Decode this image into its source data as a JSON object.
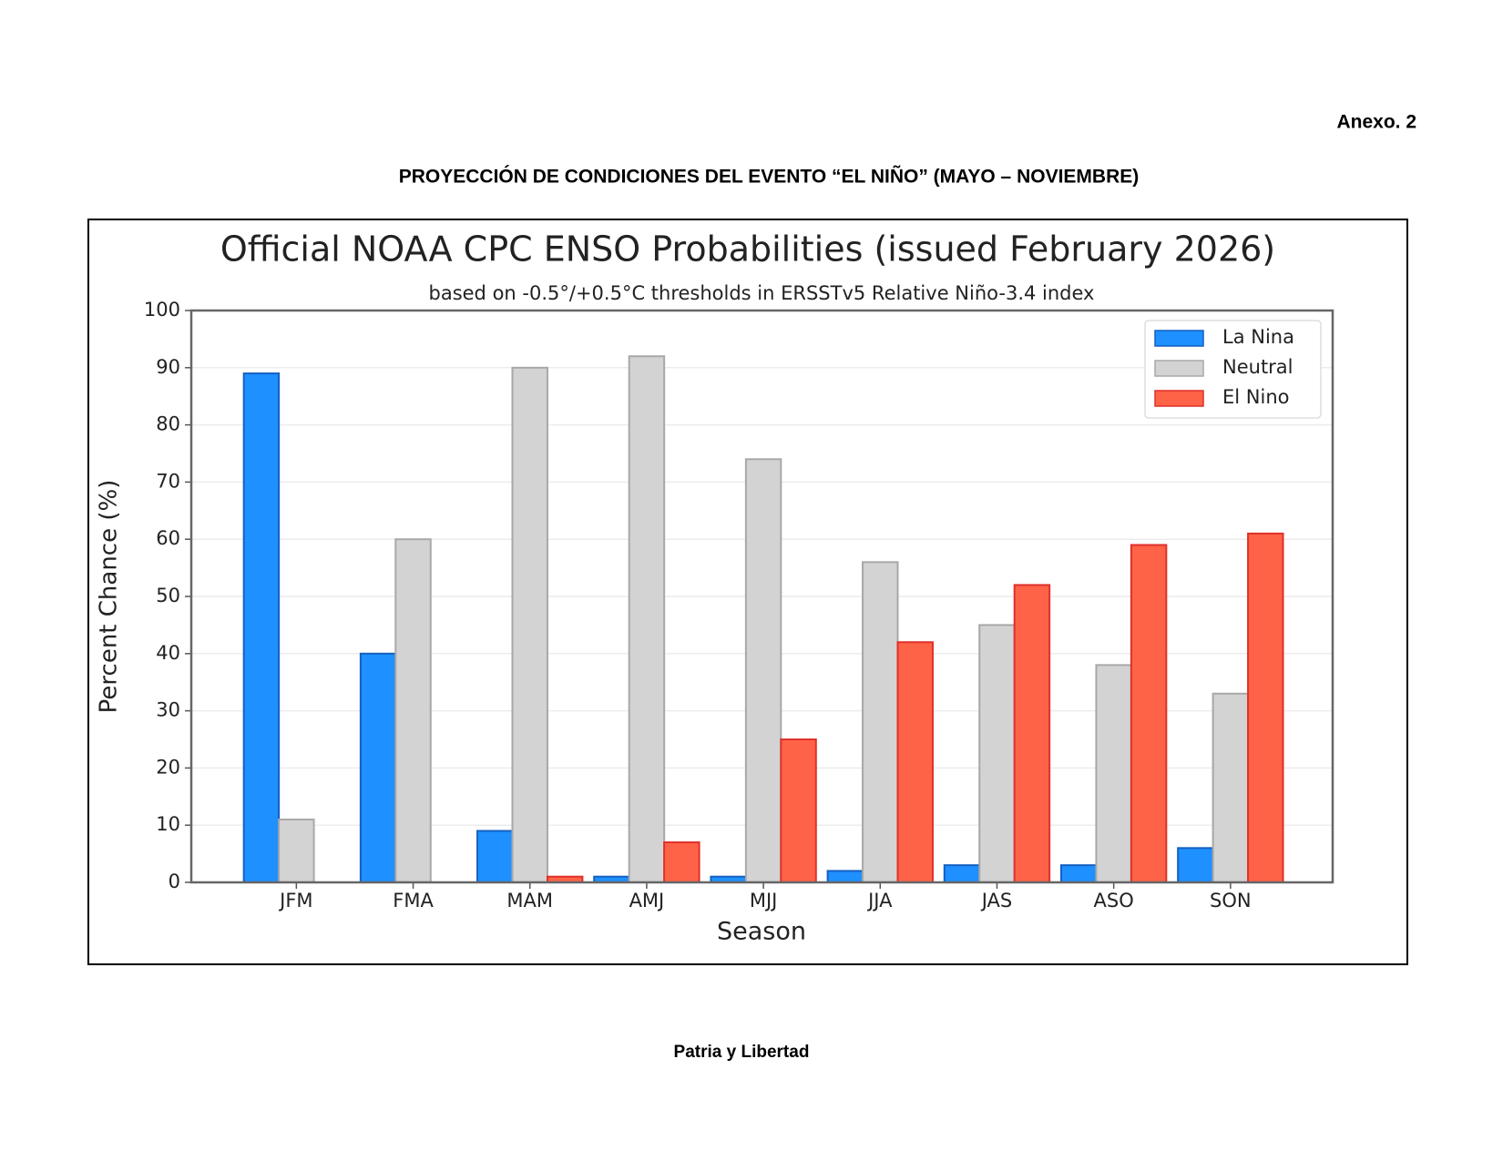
{
  "header": {
    "annex": "Anexo. 2",
    "title": "PROYECCIÓN DE CONDICIONES DEL EVENTO “EL NIÑO” (MAYO – NOVIEMBRE)"
  },
  "footer": {
    "text": "Patria y Libertad"
  },
  "chart_data": {
    "type": "bar",
    "title": "Official NOAA CPC ENSO Probabilities (issued February 2026)",
    "subtitle": "based on -0.5°/+0.5°C thresholds in ERSSTv5 Relative Niño-3.4 index",
    "x_label": "Season",
    "y_label": "Percent Chance (%)",
    "categories": [
      "JFM",
      "FMA",
      "MAM",
      "AMJ",
      "MJJ",
      "JJA",
      "JAS",
      "ASO",
      "SON"
    ],
    "series": [
      {
        "name": "La Nina",
        "color": "#1e90ff",
        "values": [
          89,
          40,
          9,
          1,
          1,
          2,
          3,
          3,
          6
        ]
      },
      {
        "name": "Neutral",
        "color": "#d3d3d3",
        "values": [
          11,
          60,
          90,
          92,
          74,
          56,
          45,
          38,
          33
        ]
      },
      {
        "name": "El Nino",
        "color": "#ff6347",
        "values": [
          0,
          0,
          1,
          7,
          25,
          42,
          52,
          59,
          61
        ]
      }
    ],
    "ylim": [
      0,
      100
    ],
    "yticks": [
      0,
      10,
      20,
      30,
      40,
      50,
      60,
      70,
      80,
      90,
      100
    ],
    "grid": true,
    "legend": "upper right"
  }
}
